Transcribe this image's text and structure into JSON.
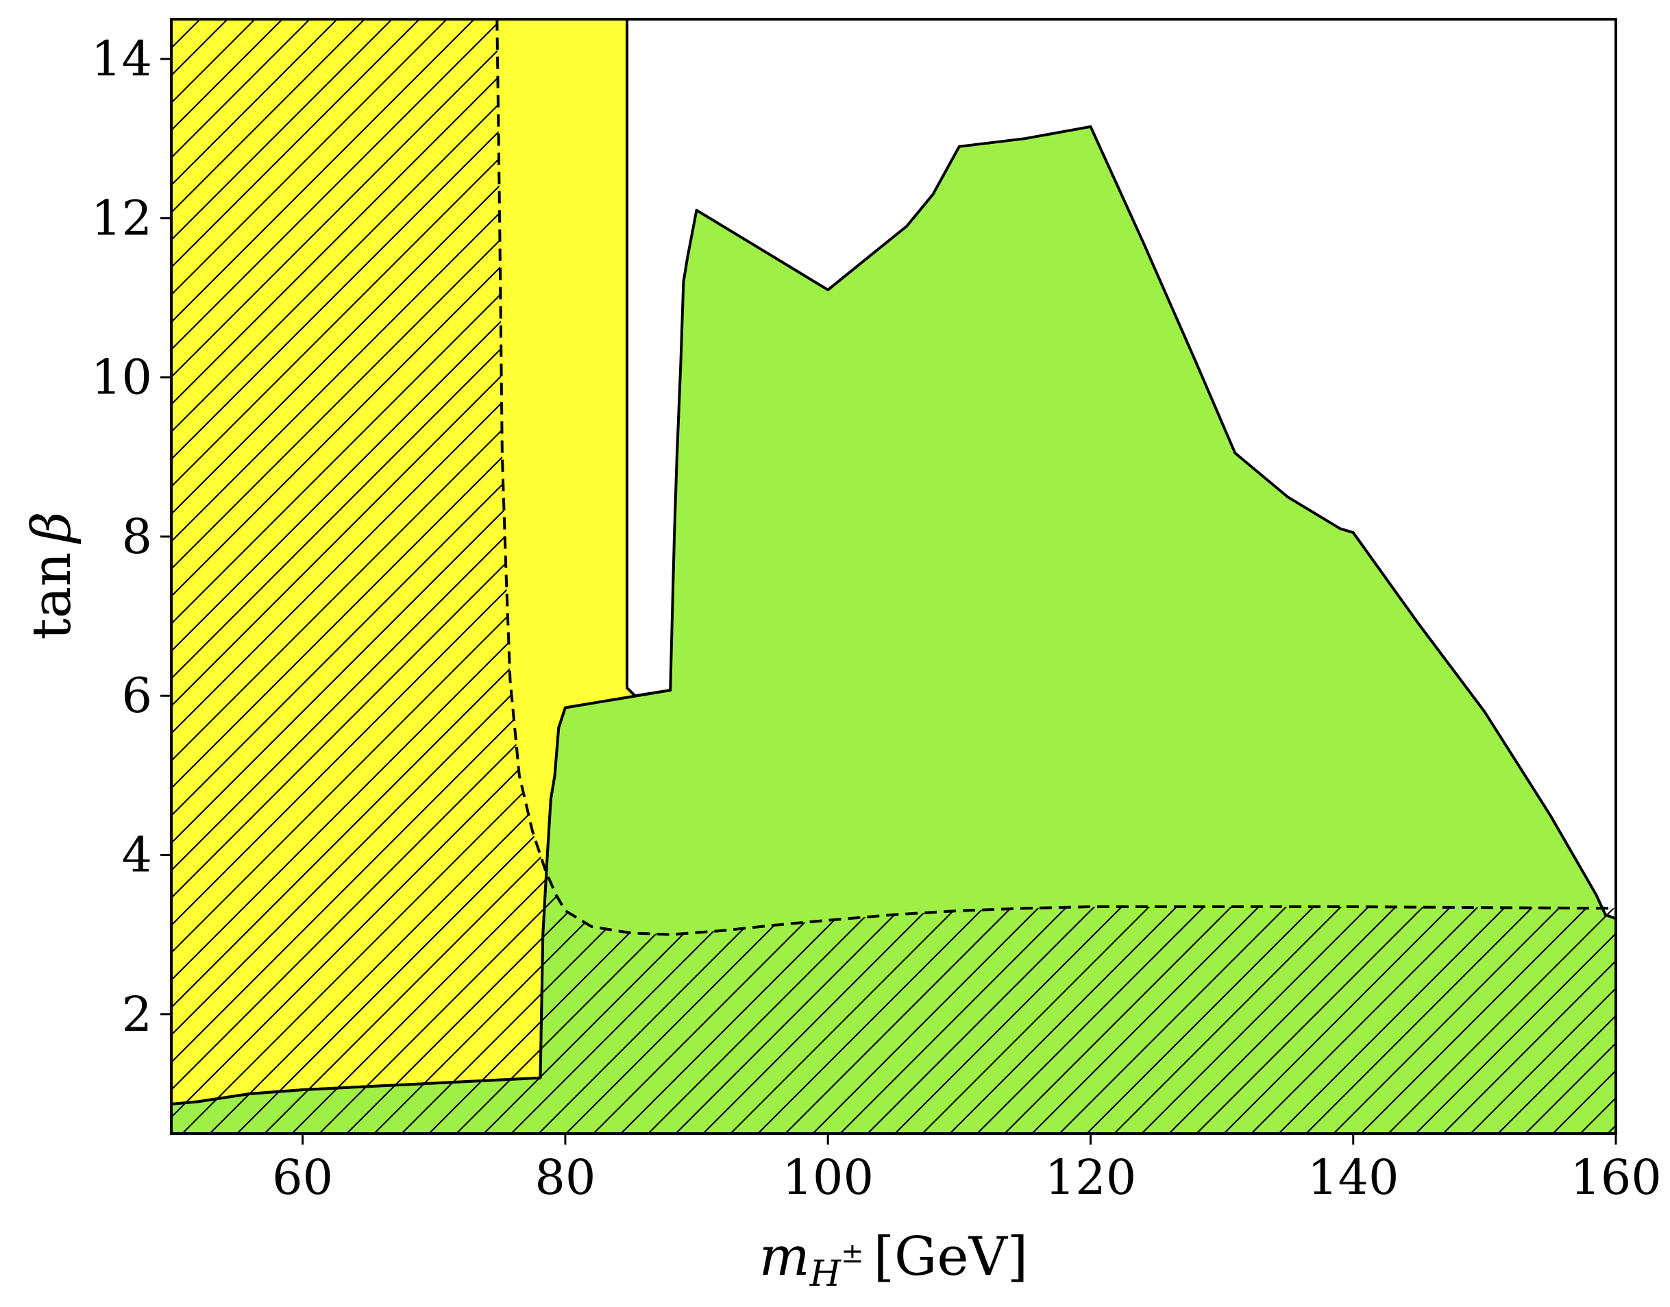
{
  "chart_data": {
    "type": "area",
    "xlabel": {
      "main": "m",
      "sub": "H",
      "sup": "±",
      "unit": "[GeV]"
    },
    "ylabel": {
      "main": "tan",
      "greek": "β"
    },
    "xlim": [
      50,
      160
    ],
    "ylim": [
      0.5,
      14.5
    ],
    "xticks": [
      60,
      80,
      100,
      120,
      140,
      160
    ],
    "yticks": [
      2,
      4,
      6,
      8,
      10,
      12,
      14
    ],
    "grid": false,
    "colors": {
      "yellow_region": "#ffff33",
      "green_region": "#9ff046",
      "boundary": "#000000",
      "hatch": "#000000",
      "background": "#ffffff"
    },
    "regions": [
      {
        "id": "yellow",
        "fill": "#ffff33",
        "boundary_style": "solid",
        "polygon": [
          [
            50,
            0.5
          ],
          [
            50,
            14.5
          ],
          [
            84.7,
            14.5
          ],
          [
            84.7,
            6.1
          ],
          [
            85.3,
            6.0
          ],
          [
            88,
            6.07
          ],
          [
            80,
            5.85
          ],
          [
            79.5,
            5.6
          ],
          [
            79.2,
            5.0
          ],
          [
            78.9,
            4.7
          ],
          [
            78.6,
            3.9
          ],
          [
            78.3,
            3.0
          ],
          [
            78.1,
            1.2
          ],
          [
            60,
            1.05
          ],
          [
            56,
            1.0
          ],
          [
            52,
            0.9
          ],
          [
            50,
            0.87
          ]
        ]
      },
      {
        "id": "green",
        "fill": "#9ff046",
        "boundary_style": "solid",
        "polygon": [
          [
            50,
            0.5
          ],
          [
            50,
            0.87
          ],
          [
            52,
            0.9
          ],
          [
            56,
            1.0
          ],
          [
            60,
            1.05
          ],
          [
            78.1,
            1.2
          ],
          [
            78.3,
            3.0
          ],
          [
            78.6,
            3.9
          ],
          [
            78.9,
            4.7
          ],
          [
            79.2,
            5.0
          ],
          [
            79.5,
            5.6
          ],
          [
            80,
            5.85
          ],
          [
            88,
            6.07
          ],
          [
            88.3,
            8.0
          ],
          [
            88.5,
            9.0
          ],
          [
            88.8,
            10.2
          ],
          [
            89,
            11.2
          ],
          [
            89.3,
            11.5
          ],
          [
            90,
            12.1
          ],
          [
            95,
            11.6
          ],
          [
            100,
            11.1
          ],
          [
            103,
            11.5
          ],
          [
            106,
            11.9
          ],
          [
            108,
            12.3
          ],
          [
            110,
            12.9
          ],
          [
            115,
            13.0
          ],
          [
            120,
            13.15
          ],
          [
            124,
            11.7
          ],
          [
            128,
            10.2
          ],
          [
            131,
            9.05
          ],
          [
            135,
            8.5
          ],
          [
            139,
            8.1
          ],
          [
            140,
            8.05
          ],
          [
            145,
            6.9
          ],
          [
            150,
            5.8
          ],
          [
            155,
            4.5
          ],
          [
            158.5,
            3.5
          ],
          [
            159.2,
            3.25
          ],
          [
            160,
            3.2
          ],
          [
            160,
            0.5
          ]
        ]
      }
    ],
    "hatched_regions": [
      {
        "id": "hatch-left",
        "boundary_style": "dashed",
        "polygon": [
          [
            50,
            0.5
          ],
          [
            50,
            14.5
          ],
          [
            74.8,
            14.5
          ],
          [
            75,
            12.0
          ],
          [
            75.2,
            9.0
          ],
          [
            75.5,
            7.5
          ],
          [
            75.8,
            6.2
          ],
          [
            76.5,
            5.0
          ],
          [
            77.5,
            4.3
          ],
          [
            78.5,
            3.8
          ],
          [
            79.3,
            3.5
          ],
          [
            80,
            3.3
          ],
          [
            82,
            3.1
          ],
          [
            85,
            3.02
          ],
          [
            88,
            3.0
          ],
          [
            92,
            3.05
          ],
          [
            96,
            3.12
          ],
          [
            100,
            3.18
          ],
          [
            105,
            3.25
          ],
          [
            110,
            3.3
          ],
          [
            115,
            3.33
          ],
          [
            120,
            3.35
          ],
          [
            130,
            3.35
          ],
          [
            140,
            3.35
          ],
          [
            150,
            3.34
          ],
          [
            160,
            3.33
          ],
          [
            160,
            0.5
          ]
        ]
      }
    ]
  }
}
